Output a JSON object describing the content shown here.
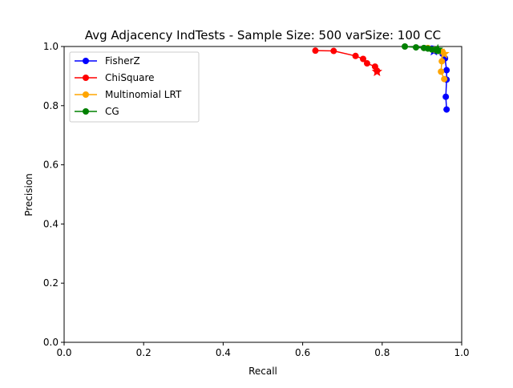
{
  "chart_data": {
    "type": "line",
    "title": "Avg Adjacency IndTests - Sample Size: 500 varSize: 100 CC",
    "xlabel": "Recall",
    "ylabel": "Precision",
    "xlim": [
      0.0,
      1.0
    ],
    "ylim": [
      0.0,
      1.0
    ],
    "xticks": [
      "0.0",
      "0.2",
      "0.4",
      "0.6",
      "0.8",
      "1.0"
    ],
    "yticks": [
      "0.0",
      "0.2",
      "0.4",
      "0.6",
      "0.8",
      "1.0"
    ],
    "grid": false,
    "legend_position": "top-left",
    "series": [
      {
        "name": "FisherZ",
        "color": "#0000ff",
        "points": [
          [
            0.925,
            0.993
          ],
          [
            0.94,
            0.985
          ],
          [
            0.952,
            0.975
          ],
          [
            0.958,
            0.96
          ],
          [
            0.962,
            0.92
          ],
          [
            0.962,
            0.888
          ],
          [
            0.96,
            0.83
          ],
          [
            0.962,
            0.787
          ]
        ],
        "star": [
          0.93,
          0.985
        ]
      },
      {
        "name": "ChiSquare",
        "color": "#ff0000",
        "points": [
          [
            0.632,
            0.986
          ],
          [
            0.678,
            0.985
          ],
          [
            0.733,
            0.968
          ],
          [
            0.752,
            0.958
          ],
          [
            0.762,
            0.943
          ],
          [
            0.782,
            0.932
          ],
          [
            0.787,
            0.918
          ]
        ],
        "star": [
          0.787,
          0.915
        ]
      },
      {
        "name": "Multinomial LRT",
        "color": "#ffa500",
        "points": [
          [
            0.915,
            0.995
          ],
          [
            0.93,
            0.99
          ],
          [
            0.945,
            0.985
          ],
          [
            0.952,
            0.982
          ],
          [
            0.95,
            0.95
          ],
          [
            0.948,
            0.915
          ],
          [
            0.956,
            0.89
          ]
        ],
        "star": [
          0.956,
          0.975
        ]
      },
      {
        "name": "CG",
        "color": "#008000",
        "points": [
          [
            0.857,
            1.0
          ],
          [
            0.885,
            0.997
          ],
          [
            0.905,
            0.995
          ],
          [
            0.915,
            0.993
          ],
          [
            0.925,
            0.99
          ],
          [
            0.935,
            0.99
          ],
          [
            0.94,
            0.985
          ]
        ],
        "star": [
          0.94,
          0.99
        ]
      }
    ]
  }
}
